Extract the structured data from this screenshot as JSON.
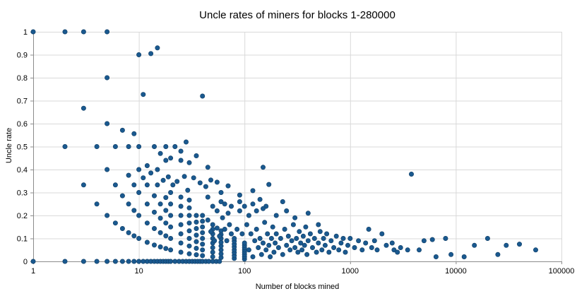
{
  "chart_data": {
    "type": "scatter",
    "title": "Uncle rates of miners for blocks 1-280000",
    "xlabel": "Number of blocks mined",
    "ylabel": "Uncle rate",
    "x_scale": "log",
    "xlim": [
      1,
      100000
    ],
    "ylim": [
      0,
      1
    ],
    "grid": true,
    "legend": "none",
    "x_ticks": [
      1,
      10,
      100,
      1000,
      10000,
      100000
    ],
    "x_tick_labels": [
      "1",
      "10",
      "100",
      "1000",
      "10000",
      "100000"
    ],
    "y_ticks": [
      0,
      0.1,
      0.2,
      0.3,
      0.4,
      0.5,
      0.6,
      0.7,
      0.8,
      0.9,
      1
    ],
    "y_tick_labels": [
      "0",
      "0.1",
      "0.2",
      "0.3",
      "0.4",
      "0.5",
      "0.6",
      "0.7",
      "0.8",
      "0.9",
      "1"
    ],
    "point_color": "#1a598f",
    "point_stroke": "#123f66",
    "grid_color": "#d9d9d9",
    "axis_color": "#8c8c8c",
    "points": [
      [
        1,
        1
      ],
      [
        2,
        1
      ],
      [
        3,
        1
      ],
      [
        5,
        1
      ],
      [
        10,
        0.9
      ],
      [
        13,
        0.905
      ],
      [
        15,
        0.93
      ],
      [
        5,
        0.8
      ],
      [
        3,
        0.667
      ],
      [
        5,
        0.6
      ],
      [
        11,
        0.727
      ],
      [
        40,
        0.72
      ],
      [
        2,
        0.5
      ],
      [
        4,
        0.5
      ],
      [
        6,
        0.5
      ],
      [
        8,
        0.5
      ],
      [
        10,
        0.5
      ],
      [
        14,
        0.5
      ],
      [
        18,
        0.5
      ],
      [
        22,
        0.5
      ],
      [
        28,
        0.52
      ],
      [
        7,
        0.571
      ],
      [
        9,
        0.556
      ],
      [
        5,
        0.4
      ],
      [
        10,
        0.4
      ],
      [
        15,
        0.4
      ],
      [
        12,
        0.417
      ],
      [
        18,
        0.44
      ],
      [
        20,
        0.45
      ],
      [
        25,
        0.44
      ],
      [
        16,
        0.47
      ],
      [
        30,
        0.43
      ],
      [
        35,
        0.46
      ],
      [
        45,
        0.41
      ],
      [
        150,
        0.41
      ],
      [
        25,
        0.48
      ],
      [
        8,
        0.375
      ],
      [
        11,
        0.364
      ],
      [
        13,
        0.385
      ],
      [
        17,
        0.353
      ],
      [
        19,
        0.368
      ],
      [
        21,
        0.333
      ],
      [
        23,
        0.348
      ],
      [
        27,
        0.37
      ],
      [
        29,
        0.31
      ],
      [
        33,
        0.364
      ],
      [
        38,
        0.342
      ],
      [
        43,
        0.326
      ],
      [
        48,
        0.354
      ],
      [
        55,
        0.345
      ],
      [
        60,
        0.3
      ],
      [
        70,
        0.329
      ],
      [
        90,
        0.289
      ],
      [
        120,
        0.308
      ],
      [
        170,
        0.335
      ],
      [
        3,
        0.333
      ],
      [
        4,
        0.25
      ],
      [
        5,
        0.2
      ],
      [
        6,
        0.167
      ],
      [
        7,
        0.143
      ],
      [
        8,
        0.125
      ],
      [
        9,
        0.111
      ],
      [
        10,
        0.1
      ],
      [
        12,
        0.083
      ],
      [
        14,
        0.071
      ],
      [
        16,
        0.063
      ],
      [
        18,
        0.056
      ],
      [
        20,
        0.05
      ],
      [
        25,
        0.04
      ],
      [
        30,
        0.033
      ],
      [
        35,
        0.029
      ],
      [
        40,
        0.025
      ],
      [
        50,
        0.02
      ],
      [
        60,
        0.017
      ],
      [
        80,
        0.013
      ],
      [
        100,
        0.01
      ],
      [
        6,
        0.333
      ],
      [
        7,
        0.286
      ],
      [
        8,
        0.25
      ],
      [
        9,
        0.222
      ],
      [
        10,
        0.2
      ],
      [
        12,
        0.167
      ],
      [
        14,
        0.143
      ],
      [
        16,
        0.125
      ],
      [
        18,
        0.111
      ],
      [
        20,
        0.1
      ],
      [
        25,
        0.08
      ],
      [
        30,
        0.067
      ],
      [
        35,
        0.057
      ],
      [
        40,
        0.05
      ],
      [
        50,
        0.04
      ],
      [
        60,
        0.033
      ],
      [
        80,
        0.025
      ],
      [
        100,
        0.02
      ],
      [
        9,
        0.333
      ],
      [
        10,
        0.3
      ],
      [
        12,
        0.25
      ],
      [
        14,
        0.214
      ],
      [
        16,
        0.188
      ],
      [
        18,
        0.167
      ],
      [
        20,
        0.15
      ],
      [
        25,
        0.12
      ],
      [
        30,
        0.1
      ],
      [
        35,
        0.086
      ],
      [
        40,
        0.075
      ],
      [
        50,
        0.06
      ],
      [
        60,
        0.05
      ],
      [
        80,
        0.038
      ],
      [
        100,
        0.03
      ],
      [
        12,
        0.333
      ],
      [
        14,
        0.286
      ],
      [
        16,
        0.25
      ],
      [
        18,
        0.222
      ],
      [
        20,
        0.2
      ],
      [
        25,
        0.16
      ],
      [
        30,
        0.133
      ],
      [
        35,
        0.114
      ],
      [
        40,
        0.1
      ],
      [
        50,
        0.08
      ],
      [
        60,
        0.067
      ],
      [
        80,
        0.05
      ],
      [
        100,
        0.04
      ],
      [
        15,
        0.333
      ],
      [
        18,
        0.278
      ],
      [
        20,
        0.25
      ],
      [
        25,
        0.2
      ],
      [
        30,
        0.167
      ],
      [
        35,
        0.143
      ],
      [
        40,
        0.125
      ],
      [
        50,
        0.1
      ],
      [
        60,
        0.083
      ],
      [
        80,
        0.063
      ],
      [
        100,
        0.05
      ],
      [
        20,
        0.3
      ],
      [
        25,
        0.24
      ],
      [
        30,
        0.2
      ],
      [
        35,
        0.171
      ],
      [
        40,
        0.15
      ],
      [
        50,
        0.12
      ],
      [
        60,
        0.1
      ],
      [
        80,
        0.075
      ],
      [
        100,
        0.06
      ],
      [
        25,
        0.28
      ],
      [
        30,
        0.233
      ],
      [
        35,
        0.2
      ],
      [
        40,
        0.175
      ],
      [
        50,
        0.14
      ],
      [
        60,
        0.117
      ],
      [
        80,
        0.088
      ],
      [
        100,
        0.07
      ],
      [
        30,
        0.267
      ],
      [
        40,
        0.2
      ],
      [
        50,
        0.16
      ],
      [
        60,
        0.133
      ],
      [
        80,
        0.1
      ],
      [
        100,
        0.08
      ],
      [
        1,
        0
      ],
      [
        2,
        0
      ],
      [
        3,
        0
      ],
      [
        4,
        0
      ],
      [
        5,
        0
      ],
      [
        6,
        0
      ],
      [
        7,
        0
      ],
      [
        8,
        0
      ],
      [
        9,
        0
      ],
      [
        10,
        0
      ],
      [
        11,
        0
      ],
      [
        12,
        0
      ],
      [
        13,
        0
      ],
      [
        14,
        0
      ],
      [
        15,
        0
      ],
      [
        16,
        0
      ],
      [
        17,
        0
      ],
      [
        18,
        0
      ],
      [
        19,
        0
      ],
      [
        20,
        0
      ],
      [
        22,
        0
      ],
      [
        24,
        0
      ],
      [
        26,
        0
      ],
      [
        28,
        0
      ],
      [
        30,
        0
      ],
      [
        32,
        0
      ],
      [
        34,
        0
      ],
      [
        36,
        0
      ],
      [
        38,
        0
      ],
      [
        40,
        0
      ],
      [
        43,
        0
      ],
      [
        46,
        0
      ],
      [
        50,
        0
      ],
      [
        54,
        0
      ],
      [
        58,
        0
      ],
      [
        110,
        0.05
      ],
      [
        115,
        0.12
      ],
      [
        120,
        0.02
      ],
      [
        125,
        0.09
      ],
      [
        130,
        0.14
      ],
      [
        135,
        0.06
      ],
      [
        140,
        0.1
      ],
      [
        145,
        0.03
      ],
      [
        150,
        0.08
      ],
      [
        155,
        0.17
      ],
      [
        160,
        0.05
      ],
      [
        165,
        0.12
      ],
      [
        170,
        0.07
      ],
      [
        175,
        0.02
      ],
      [
        180,
        0.1
      ],
      [
        185,
        0.15
      ],
      [
        190,
        0.04
      ],
      [
        195,
        0.08
      ],
      [
        200,
        0.12
      ],
      [
        210,
        0.06
      ],
      [
        220,
        0.1
      ],
      [
        230,
        0.03
      ],
      [
        240,
        0.14
      ],
      [
        250,
        0.07
      ],
      [
        260,
        0.11
      ],
      [
        270,
        0.05
      ],
      [
        280,
        0.09
      ],
      [
        290,
        0.16
      ],
      [
        300,
        0.06
      ],
      [
        310,
        0.1
      ],
      [
        320,
        0.04
      ],
      [
        330,
        0.13
      ],
      [
        340,
        0.08
      ],
      [
        350,
        0.05
      ],
      [
        360,
        0.11
      ],
      [
        370,
        0.07
      ],
      [
        380,
        0.15
      ],
      [
        390,
        0.03
      ],
      [
        400,
        0.09
      ],
      [
        420,
        0.12
      ],
      [
        440,
        0.06
      ],
      [
        460,
        0.1
      ],
      [
        480,
        0.04
      ],
      [
        500,
        0.08
      ],
      [
        520,
        0.13
      ],
      [
        540,
        0.05
      ],
      [
        560,
        0.1
      ],
      [
        580,
        0.07
      ],
      [
        600,
        0.12
      ],
      [
        630,
        0.04
      ],
      [
        660,
        0.09
      ],
      [
        700,
        0.06
      ],
      [
        740,
        0.11
      ],
      [
        780,
        0.05
      ],
      [
        820,
        0.08
      ],
      [
        860,
        0.1
      ],
      [
        900,
        0.04
      ],
      [
        950,
        0.07
      ],
      [
        1000,
        0.1
      ],
      [
        1100,
        0.06
      ],
      [
        1200,
        0.09
      ],
      [
        1300,
        0.05
      ],
      [
        1400,
        0.08
      ],
      [
        1600,
        0.06
      ],
      [
        1800,
        0.05
      ],
      [
        2200,
        0.07
      ],
      [
        2600,
        0.05
      ],
      [
        3000,
        0.06
      ],
      [
        3500,
        0.05
      ],
      [
        45,
        0.18
      ],
      [
        48,
        0.13
      ],
      [
        52,
        0.09
      ],
      [
        55,
        0.145
      ],
      [
        58,
        0.11
      ],
      [
        62,
        0.19
      ],
      [
        65,
        0.14
      ],
      [
        68,
        0.09
      ],
      [
        72,
        0.16
      ],
      [
        75,
        0.12
      ],
      [
        85,
        0.14
      ],
      [
        95,
        0.12
      ],
      [
        105,
        0.16
      ],
      [
        90,
        0.22
      ],
      [
        70,
        0.21
      ],
      [
        110,
        0.2
      ],
      [
        130,
        0.22
      ],
      [
        160,
        0.24
      ],
      [
        200,
        0.2
      ],
      [
        250,
        0.22
      ],
      [
        300,
        0.19
      ],
      [
        400,
        0.21
      ],
      [
        500,
        0.16
      ],
      [
        120,
        0.25
      ],
      [
        140,
        0.27
      ],
      [
        90,
        0.26
      ],
      [
        75,
        0.24
      ],
      [
        60,
        0.26
      ],
      [
        50,
        0.24
      ],
      [
        45,
        0.28
      ],
      [
        55,
        0.22
      ],
      [
        65,
        0.25
      ],
      [
        100,
        0.24
      ],
      [
        150,
        0.23
      ],
      [
        230,
        0.26
      ],
      [
        3800,
        0.38
      ],
      [
        5000,
        0.09
      ],
      [
        6000,
        0.095
      ],
      [
        6500,
        0.02
      ],
      [
        8000,
        0.1
      ],
      [
        9000,
        0.03
      ],
      [
        12000,
        0.02
      ],
      [
        15000,
        0.07
      ],
      [
        20000,
        0.1
      ],
      [
        25000,
        0.03
      ],
      [
        30000,
        0.07
      ],
      [
        40000,
        0.075
      ],
      [
        57000,
        0.05
      ],
      [
        2000,
        0.12
      ],
      [
        1500,
        0.14
      ],
      [
        1700,
        0.09
      ],
      [
        2500,
        0.08
      ],
      [
        2800,
        0.04
      ],
      [
        4500,
        0.05
      ]
    ]
  }
}
